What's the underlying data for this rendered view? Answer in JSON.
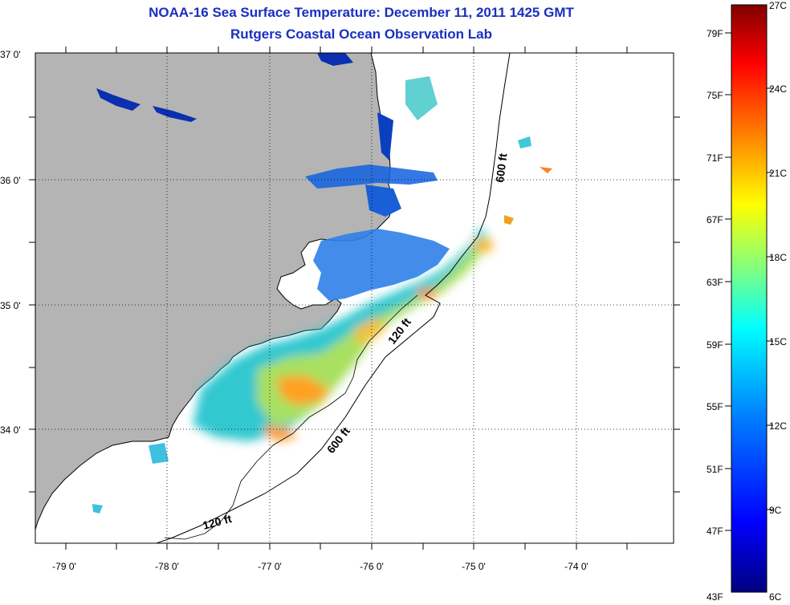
{
  "title": {
    "line1": "NOAA-16 Sea Surface Temperature:  December 11, 2011 1425 GMT",
    "line2": "Rutgers Coastal Ocean Observation Lab"
  },
  "axes": {
    "x_ticks": [
      "-79 0'",
      "-78 0'",
      "-77 0'",
      "-76 0'",
      "-75 0'",
      "-74 0'"
    ],
    "y_ticks": [
      "37 0'",
      "36 0'",
      "35 0'",
      "34 0'"
    ]
  },
  "contour_labels": [
    "600 ft",
    "120 ft",
    "600 ft",
    "120 ft"
  ],
  "colorbar": {
    "fahrenheit": [
      "79F",
      "75F",
      "71F",
      "67F",
      "63F",
      "59F",
      "55F",
      "51F",
      "47F",
      "43F"
    ],
    "celsius": [
      "27C",
      "24C",
      "21C",
      "18C",
      "15C",
      "12C",
      "9C",
      "6C"
    ],
    "colors": [
      "#800000",
      "#ff0000",
      "#ff8000",
      "#ffff00",
      "#80ff80",
      "#00ffff",
      "#0080ff",
      "#0000ff",
      "#000080"
    ]
  },
  "colors": {
    "land": "#b4b4b4",
    "ocean_nodata": "#ffffff",
    "title": "#1a2fbf"
  }
}
